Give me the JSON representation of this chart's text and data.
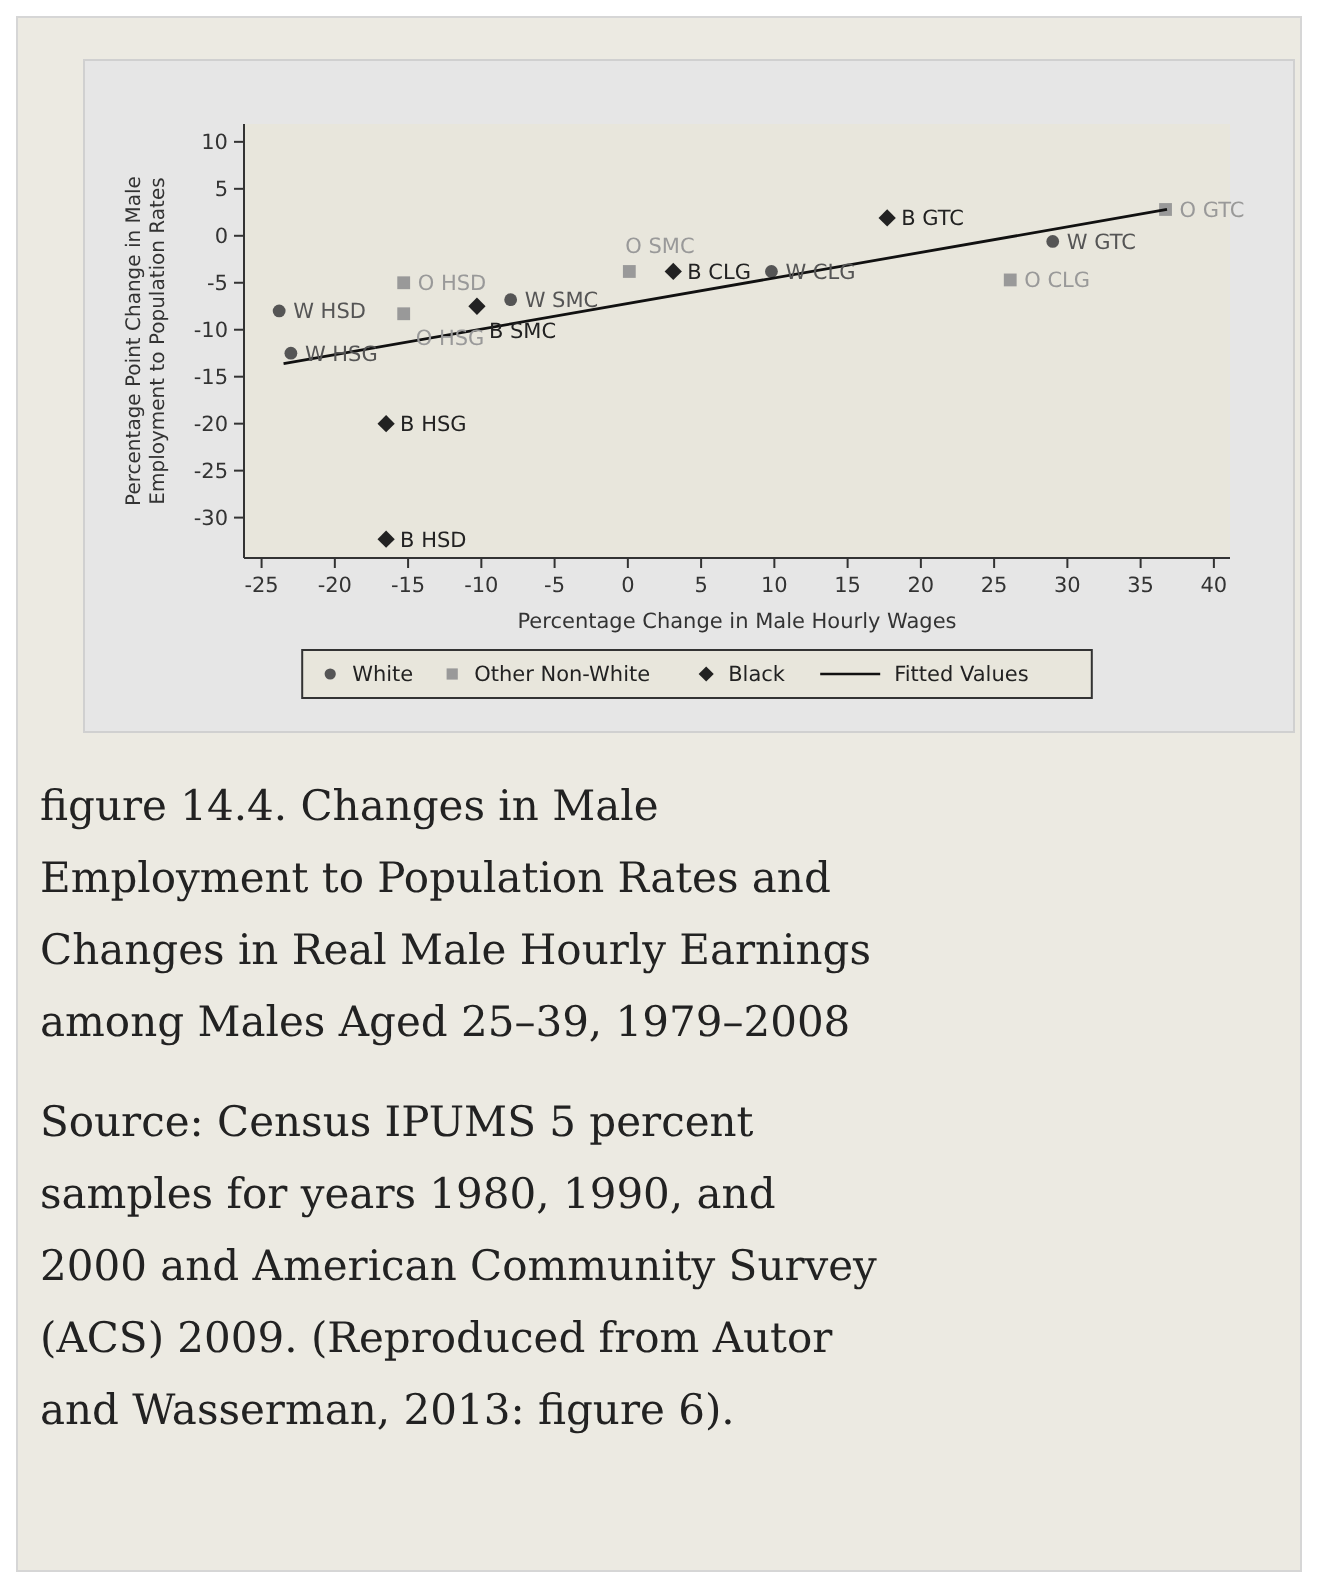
{
  "chart_data": {
    "type": "scatter",
    "title": "figure 14.4.  Changes in Male Employment to Population Rates and Changes in Real Male Hourly Earnings among Males Aged 25–39, 1979–2008",
    "xlabel": "Percentage Change in Male Hourly Wages",
    "ylabel": "Percentage Point Change in Male Employment to Population Rates",
    "xlim": [
      -26.2,
      41.1
    ],
    "ylim": [
      -34.3,
      11.9
    ],
    "xticks": [
      -25,
      -20,
      -15,
      -10,
      -5,
      0,
      5,
      10,
      15,
      20,
      25,
      30,
      35,
      40
    ],
    "yticks": [
      -30,
      -25,
      -20,
      -15,
      -10,
      -5,
      0,
      5,
      10
    ],
    "grid": false,
    "legend": "bottom",
    "series": [
      {
        "name": "White",
        "marker": "circle",
        "color": "#555555",
        "x": [
          -23.8,
          -23,
          -8,
          9.8,
          29
        ],
        "values": [
          -8,
          -12.5,
          -6.8,
          -3.8,
          -0.6
        ]
      },
      {
        "name": "Other Non-White",
        "marker": "square",
        "color": "#999999",
        "x": [
          -15.3,
          -15.3,
          0.1,
          26.1,
          36.7
        ],
        "values": [
          -5,
          -8.3,
          -3.8,
          -4.7,
          2.8
        ]
      },
      {
        "name": "Black",
        "marker": "diamond",
        "color": "#222222",
        "x": [
          -16.5,
          -16.5,
          -10.3,
          3.1,
          17.7
        ],
        "values": [
          -32.3,
          -20,
          -7.5,
          -3.8,
          1.9
        ]
      },
      {
        "name": "Fitted Values",
        "type": "line",
        "marker": "none",
        "line_style": "solid",
        "color": "#111111",
        "x": [
          -23.5,
          36.8
        ],
        "values": [
          -13.6,
          2.8
        ]
      }
    ],
    "annotations": [
      {
        "text": "W HSD",
        "x": -23.8,
        "y": -8
      },
      {
        "text": "W HSG",
        "x": -23,
        "y": -12.5
      },
      {
        "text": "O HSD",
        "x": -15.3,
        "y": -5
      },
      {
        "text": "O HSG",
        "x": -15.3,
        "y": -8.3
      },
      {
        "text": "B SMC",
        "x": -10.3,
        "y": -7.5
      },
      {
        "text": "W SMC",
        "x": -8,
        "y": -6.8
      },
      {
        "text": "O SMC",
        "x": 0.1,
        "y": -3.8
      },
      {
        "text": "B CLG",
        "x": 3.1,
        "y": -3.8
      },
      {
        "text": "W CLG",
        "x": 9.8,
        "y": -3.8
      },
      {
        "text": "B GTC",
        "x": 17.7,
        "y": 1.9
      },
      {
        "text": "O CLG",
        "x": 26.1,
        "y": -4.7
      },
      {
        "text": "W GTC",
        "x": 29,
        "y": -0.6
      },
      {
        "text": "O GTC",
        "x": 36.7,
        "y": 2.8
      },
      {
        "text": "B HSG",
        "x": -16.5,
        "y": -20
      },
      {
        "text": "B HSD",
        "x": -16.5,
        "y": -32.3
      },
      "Source: Census IPUMS 5 percent samples for years 1980, 1990, and 2000 and American Community Survey (ACS) 2009. (Reproduced from Autor and Wasserman, 2013: figure 6)."
    ]
  }
}
